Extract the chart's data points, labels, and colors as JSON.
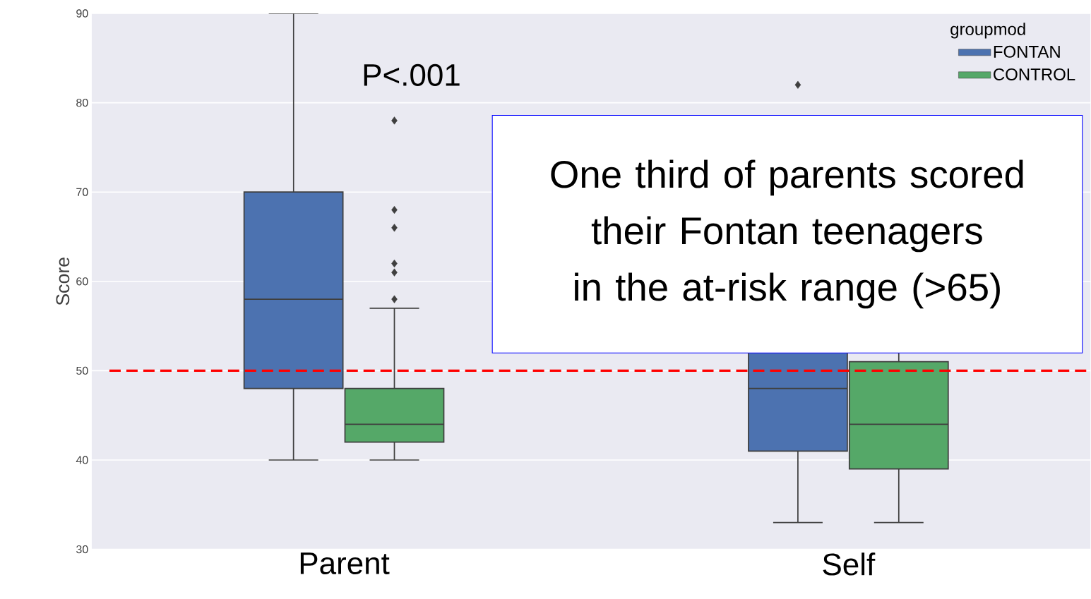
{
  "chart_data": {
    "type": "box",
    "ylabel": "Score",
    "legend_title": "groupmod",
    "categories": [
      "Parent",
      "Self"
    ],
    "series": [
      {
        "name": "FONTAN",
        "color": "#4c72b0",
        "boxes": [
          {
            "low": 40,
            "q1": 48,
            "median": 58,
            "q3": 70,
            "high": 90
          },
          {
            "low": 33,
            "q1": 41,
            "median": 48,
            "q3": 57,
            "high": 72,
            "outliers": [
              82
            ]
          }
        ]
      },
      {
        "name": "CONTROL",
        "color": "#55a868",
        "boxes": [
          {
            "low": 40,
            "q1": 42,
            "median": 44,
            "q3": 48,
            "high": 57,
            "outliers": [
              78,
              68,
              66,
              62,
              61,
              58
            ]
          },
          {
            "low": 33,
            "q1": 39,
            "median": 44,
            "q3": 51,
            "high": 60
          }
        ]
      }
    ],
    "ylim": [
      30,
      90
    ],
    "yticks": [
      30,
      40,
      50,
      60,
      70,
      80,
      90
    ],
    "grid": "y",
    "legend": "top right",
    "ref_lines": [
      {
        "axis": "y",
        "value": 50,
        "color": "#ff0000",
        "line_style": "dashed"
      }
    ],
    "annotations": [
      "P<.001",
      "One third of parents scored their Fontan teenagers in the at-risk range (>65)"
    ]
  }
}
